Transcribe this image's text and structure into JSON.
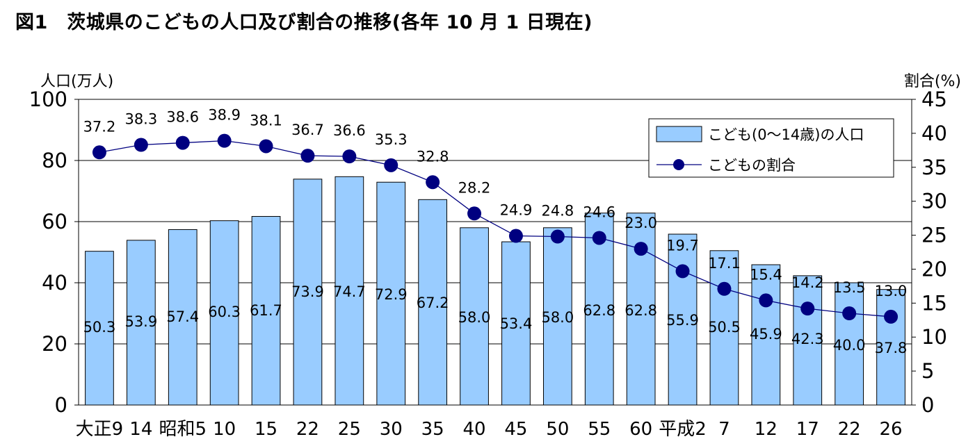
{
  "chart_data": {
    "type": "bar",
    "title": "図1　茨城県のこどもの人口及び割合の推移(各年 10 月 1 日現在)",
    "ylabel_left": "人口(万人)",
    "ylabel_right": "割合(%)",
    "ylim_left": [
      0,
      100
    ],
    "ylim_right": [
      0,
      45
    ],
    "yticks_left": [
      "0",
      "20",
      "40",
      "60",
      "80",
      "100"
    ],
    "yticks_right": [
      "0",
      "5",
      "10",
      "15",
      "20",
      "25",
      "30",
      "35",
      "40",
      "45"
    ],
    "categories": [
      "大正9",
      "14",
      "昭和5",
      "10",
      "15",
      "22",
      "25",
      "30",
      "35",
      "40",
      "45",
      "50",
      "55",
      "60",
      "平成2",
      "7",
      "12",
      "17",
      "22",
      "26"
    ],
    "grid": true,
    "legend_position": "top-right",
    "series": [
      {
        "name": "こども(0〜14歳)の人口",
        "type": "bar",
        "axis": "left",
        "color": "#99ccff",
        "values": [
          50.3,
          53.9,
          57.4,
          60.3,
          61.7,
          73.9,
          74.7,
          72.9,
          67.2,
          58.0,
          53.4,
          58.0,
          62.8,
          62.8,
          55.9,
          50.5,
          45.9,
          42.3,
          40.0,
          37.8
        ],
        "labels": [
          "50.3",
          "53.9",
          "57.4",
          "60.3",
          "61.7",
          "73.9",
          "74.7",
          "72.9",
          "67.2",
          "58.0",
          "53.4",
          "58.0",
          "62.8",
          "62.8",
          "55.9",
          "50.5",
          "45.9",
          "42.3",
          "40.0",
          "37.8"
        ]
      },
      {
        "name": "こどもの割合",
        "type": "line",
        "axis": "right",
        "color": "#000080",
        "values": [
          37.2,
          38.3,
          38.6,
          38.9,
          38.1,
          36.7,
          36.6,
          35.3,
          32.8,
          28.2,
          24.9,
          24.8,
          24.6,
          23.0,
          19.7,
          17.1,
          15.4,
          14.2,
          13.5,
          13.0
        ],
        "labels": [
          "37.2",
          "38.3",
          "38.6",
          "38.9",
          "38.1",
          "36.7",
          "36.6",
          "35.3",
          "32.8",
          "28.2",
          "24.9",
          "24.8",
          "24.6",
          "23.0",
          "19.7",
          "17.1",
          "15.4",
          "14.2",
          "13.5",
          "13.0"
        ]
      }
    ]
  }
}
